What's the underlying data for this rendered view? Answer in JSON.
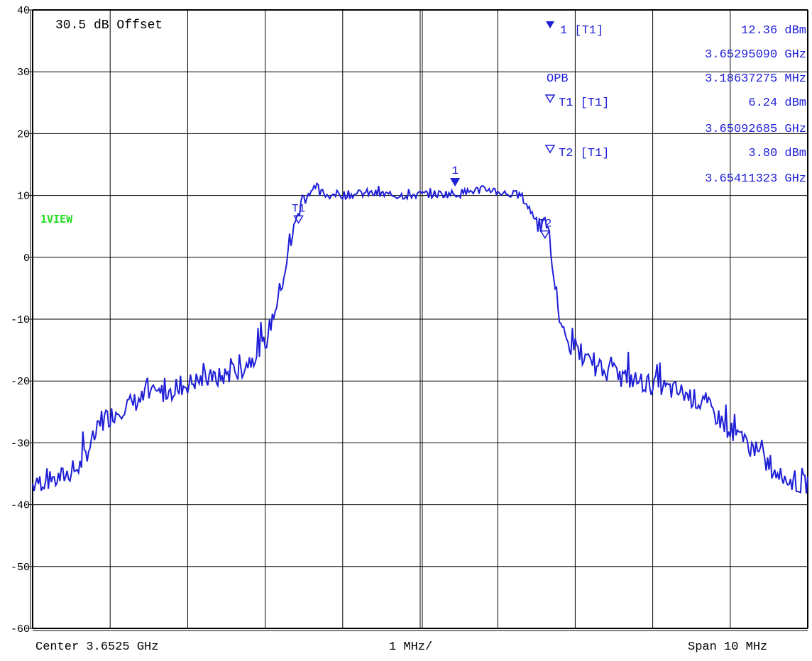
{
  "chart_data": {
    "type": "line",
    "title": "",
    "xlabel": "",
    "ylabel": "",
    "xlim": [
      3.6475,
      3.6575
    ],
    "ylim": [
      -60,
      40
    ],
    "yticks": [
      40,
      30,
      20,
      10,
      0,
      -10,
      -20,
      -30,
      -40,
      -50,
      -60
    ],
    "grid": true,
    "series": [
      {
        "x": [
          3.6475,
          3.6478,
          3.6481,
          3.6484,
          3.6487,
          3.649,
          3.6493,
          3.6496,
          3.6499,
          3.6502,
          3.6505,
          3.6507,
          3.6509,
          3.651,
          3.6511,
          3.6512,
          3.65125,
          3.6513,
          3.6514,
          3.6516,
          3.6518,
          3.6522,
          3.6526,
          3.653,
          3.6532,
          3.6534,
          3.6536,
          3.6538,
          3.654,
          3.65415,
          3.6543,
          3.6544,
          3.6545,
          3.6547,
          3.655,
          3.6553,
          3.6556,
          3.6559,
          3.6562,
          3.6565,
          3.6568,
          3.6571,
          3.6574,
          3.6575
        ],
        "y": [
          -36.5,
          -36.0,
          -34.0,
          -26.5,
          -24.0,
          -22.5,
          -21.5,
          -20.0,
          -19.5,
          -18.0,
          -14.0,
          -5.0,
          6.0,
          10.0,
          10.8,
          10.2,
          10.5,
          10.0,
          10.2,
          10.1,
          10.4,
          10.0,
          10.2,
          10.3,
          10.8,
          11.0,
          10.3,
          10.0,
          6.0,
          3.8,
          -10.0,
          -14.0,
          -15.0,
          -17.5,
          -19.0,
          -20.0,
          -21.0,
          -22.0,
          -24.0,
          -28.0,
          -31.0,
          -35.0,
          -37.0,
          -36.5
        ]
      }
    ],
    "noise_amplitude": 0.7
  },
  "ylabel_ticks": [
    "40",
    "30",
    "20",
    "10",
    "0",
    "-10",
    "-20",
    "-30",
    "-40",
    "-50",
    "-60"
  ],
  "offset_label": "30.5 dB Offset",
  "view_label": "1VIEW",
  "footer": {
    "left": "Center 3.6525 GHz",
    "center": "1 MHz/",
    "right": "Span 10 MHz"
  },
  "readout": {
    "m1_label": "1 [T1]",
    "m1_level": "12.36 dBm",
    "m1_freq": "3.65295090 GHz",
    "opb_label": "OPB",
    "opb_value": "3.18637275 MHz",
    "t1_label": "T1 [T1]",
    "t1_level": "6.24 dBm",
    "t1_freq": "3.65092685 GHz",
    "t2_label": "T2 [T1]",
    "t2_level": "3.80 dBm",
    "t2_freq": "3.65411323 GHz"
  },
  "markers": [
    {
      "name": "1",
      "kind": "filled",
      "x": 3.65295,
      "y": 12.36
    },
    {
      "name": "T1",
      "kind": "open",
      "x": 3.65093,
      "y": 6.24
    },
    {
      "name": "T2",
      "kind": "open",
      "x": 3.65411,
      "y": 3.8
    }
  ],
  "colors": {
    "trace": "#1f1fd8",
    "grid": "#000000",
    "view_label": "#22dd22",
    "readout": "#1f1fd8"
  }
}
